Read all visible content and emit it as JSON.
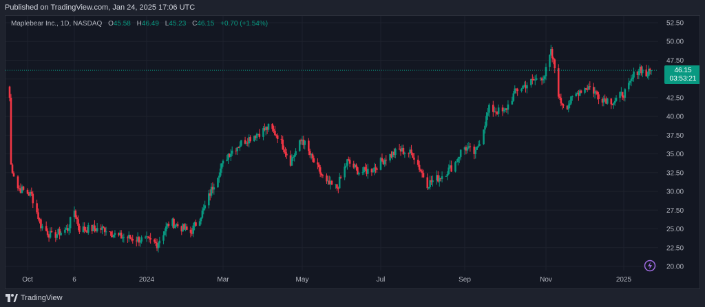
{
  "header": {
    "published": "Published on TradingView.com, Jan 24, 2025 17:06 UTC"
  },
  "legend": {
    "symbol": "Maplebear Inc., 1D, NASDAQ",
    "open_label": "O",
    "open": "45.58",
    "high_label": "H",
    "high": "46.49",
    "low_label": "L",
    "low": "45.23",
    "close_label": "C",
    "close": "46.15",
    "change": "+0.70 (+1.54%)"
  },
  "price_tag": {
    "price": "46.15",
    "countdown": "03:53:21"
  },
  "footer": {
    "brand": "TradingView"
  },
  "colors": {
    "up": "#089981",
    "down": "#f23645",
    "background": "#131722",
    "grid": "#1e222d"
  },
  "icons": [
    "tradingview-logo-icon",
    "lightning-icon"
  ],
  "chart_data": {
    "type": "candlestick",
    "title": "Maplebear Inc., 1D, NASDAQ",
    "y_axis_ticks": [
      "52.50",
      "50.00",
      "47.50",
      "45.00",
      "42.50",
      "40.00",
      "37.50",
      "35.00",
      "32.50",
      "30.00",
      "27.50",
      "25.00",
      "22.50",
      "20.00"
    ],
    "x_axis_ticks": [
      "Oct",
      "6",
      "2024",
      "Mar",
      "May",
      "Jul",
      "Sep",
      "Nov",
      "2025"
    ],
    "ylim": [
      20,
      52.5
    ],
    "last_price": 46.15,
    "grid": true,
    "trend_points": [
      {
        "x": "2023-09-19",
        "y": 42.5
      },
      {
        "x": "2023-09-20",
        "y": 33.5
      },
      {
        "x": "2023-09-25",
        "y": 30.5
      },
      {
        "x": "2023-10-05",
        "y": 29.5
      },
      {
        "x": "2023-10-12",
        "y": 25.5
      },
      {
        "x": "2023-10-20",
        "y": 24.0
      },
      {
        "x": "2023-11-01",
        "y": 25.0
      },
      {
        "x": "2023-11-06",
        "y": 27.5
      },
      {
        "x": "2023-11-10",
        "y": 25.0
      },
      {
        "x": "2023-12-01",
        "y": 25.0
      },
      {
        "x": "2023-12-10",
        "y": 24.0
      },
      {
        "x": "2024-01-01",
        "y": 23.5
      },
      {
        "x": "2024-01-10",
        "y": 23.0
      },
      {
        "x": "2024-01-20",
        "y": 26.0
      },
      {
        "x": "2024-02-05",
        "y": 24.5
      },
      {
        "x": "2024-02-15",
        "y": 27.5
      },
      {
        "x": "2024-02-25",
        "y": 32.0
      },
      {
        "x": "2024-03-05",
        "y": 35.0
      },
      {
        "x": "2024-03-15",
        "y": 36.5
      },
      {
        "x": "2024-03-25",
        "y": 37.5
      },
      {
        "x": "2024-04-05",
        "y": 38.5
      },
      {
        "x": "2024-04-12",
        "y": 37.5
      },
      {
        "x": "2024-04-22",
        "y": 34.0
      },
      {
        "x": "2024-05-01",
        "y": 37.0
      },
      {
        "x": "2024-05-08",
        "y": 34.5
      },
      {
        "x": "2024-05-20",
        "y": 31.0
      },
      {
        "x": "2024-05-28",
        "y": 30.5
      },
      {
        "x": "2024-06-05",
        "y": 34.0
      },
      {
        "x": "2024-06-15",
        "y": 32.5
      },
      {
        "x": "2024-06-25",
        "y": 33.0
      },
      {
        "x": "2024-07-05",
        "y": 34.5
      },
      {
        "x": "2024-07-15",
        "y": 35.5
      },
      {
        "x": "2024-07-25",
        "y": 35.0
      },
      {
        "x": "2024-08-05",
        "y": 31.0
      },
      {
        "x": "2024-08-15",
        "y": 32.0
      },
      {
        "x": "2024-08-25",
        "y": 33.5
      },
      {
        "x": "2024-09-01",
        "y": 36.0
      },
      {
        "x": "2024-09-10",
        "y": 35.0
      },
      {
        "x": "2024-09-20",
        "y": 41.0
      },
      {
        "x": "2024-10-01",
        "y": 40.5
      },
      {
        "x": "2024-10-10",
        "y": 43.5
      },
      {
        "x": "2024-10-20",
        "y": 44.5
      },
      {
        "x": "2024-10-31",
        "y": 45.5
      },
      {
        "x": "2024-11-05",
        "y": 48.5
      },
      {
        "x": "2024-11-08",
        "y": 46.5
      },
      {
        "x": "2024-11-12",
        "y": 42.0
      },
      {
        "x": "2024-11-18",
        "y": 41.5
      },
      {
        "x": "2024-11-28",
        "y": 43.5
      },
      {
        "x": "2024-12-05",
        "y": 44.0
      },
      {
        "x": "2024-12-15",
        "y": 42.5
      },
      {
        "x": "2024-12-25",
        "y": 42.0
      },
      {
        "x": "2025-01-05",
        "y": 43.5
      },
      {
        "x": "2025-01-10",
        "y": 45.5
      },
      {
        "x": "2025-01-15",
        "y": 46.5
      },
      {
        "x": "2025-01-20",
        "y": 45.5
      },
      {
        "x": "2025-01-24",
        "y": 46.15
      }
    ]
  }
}
